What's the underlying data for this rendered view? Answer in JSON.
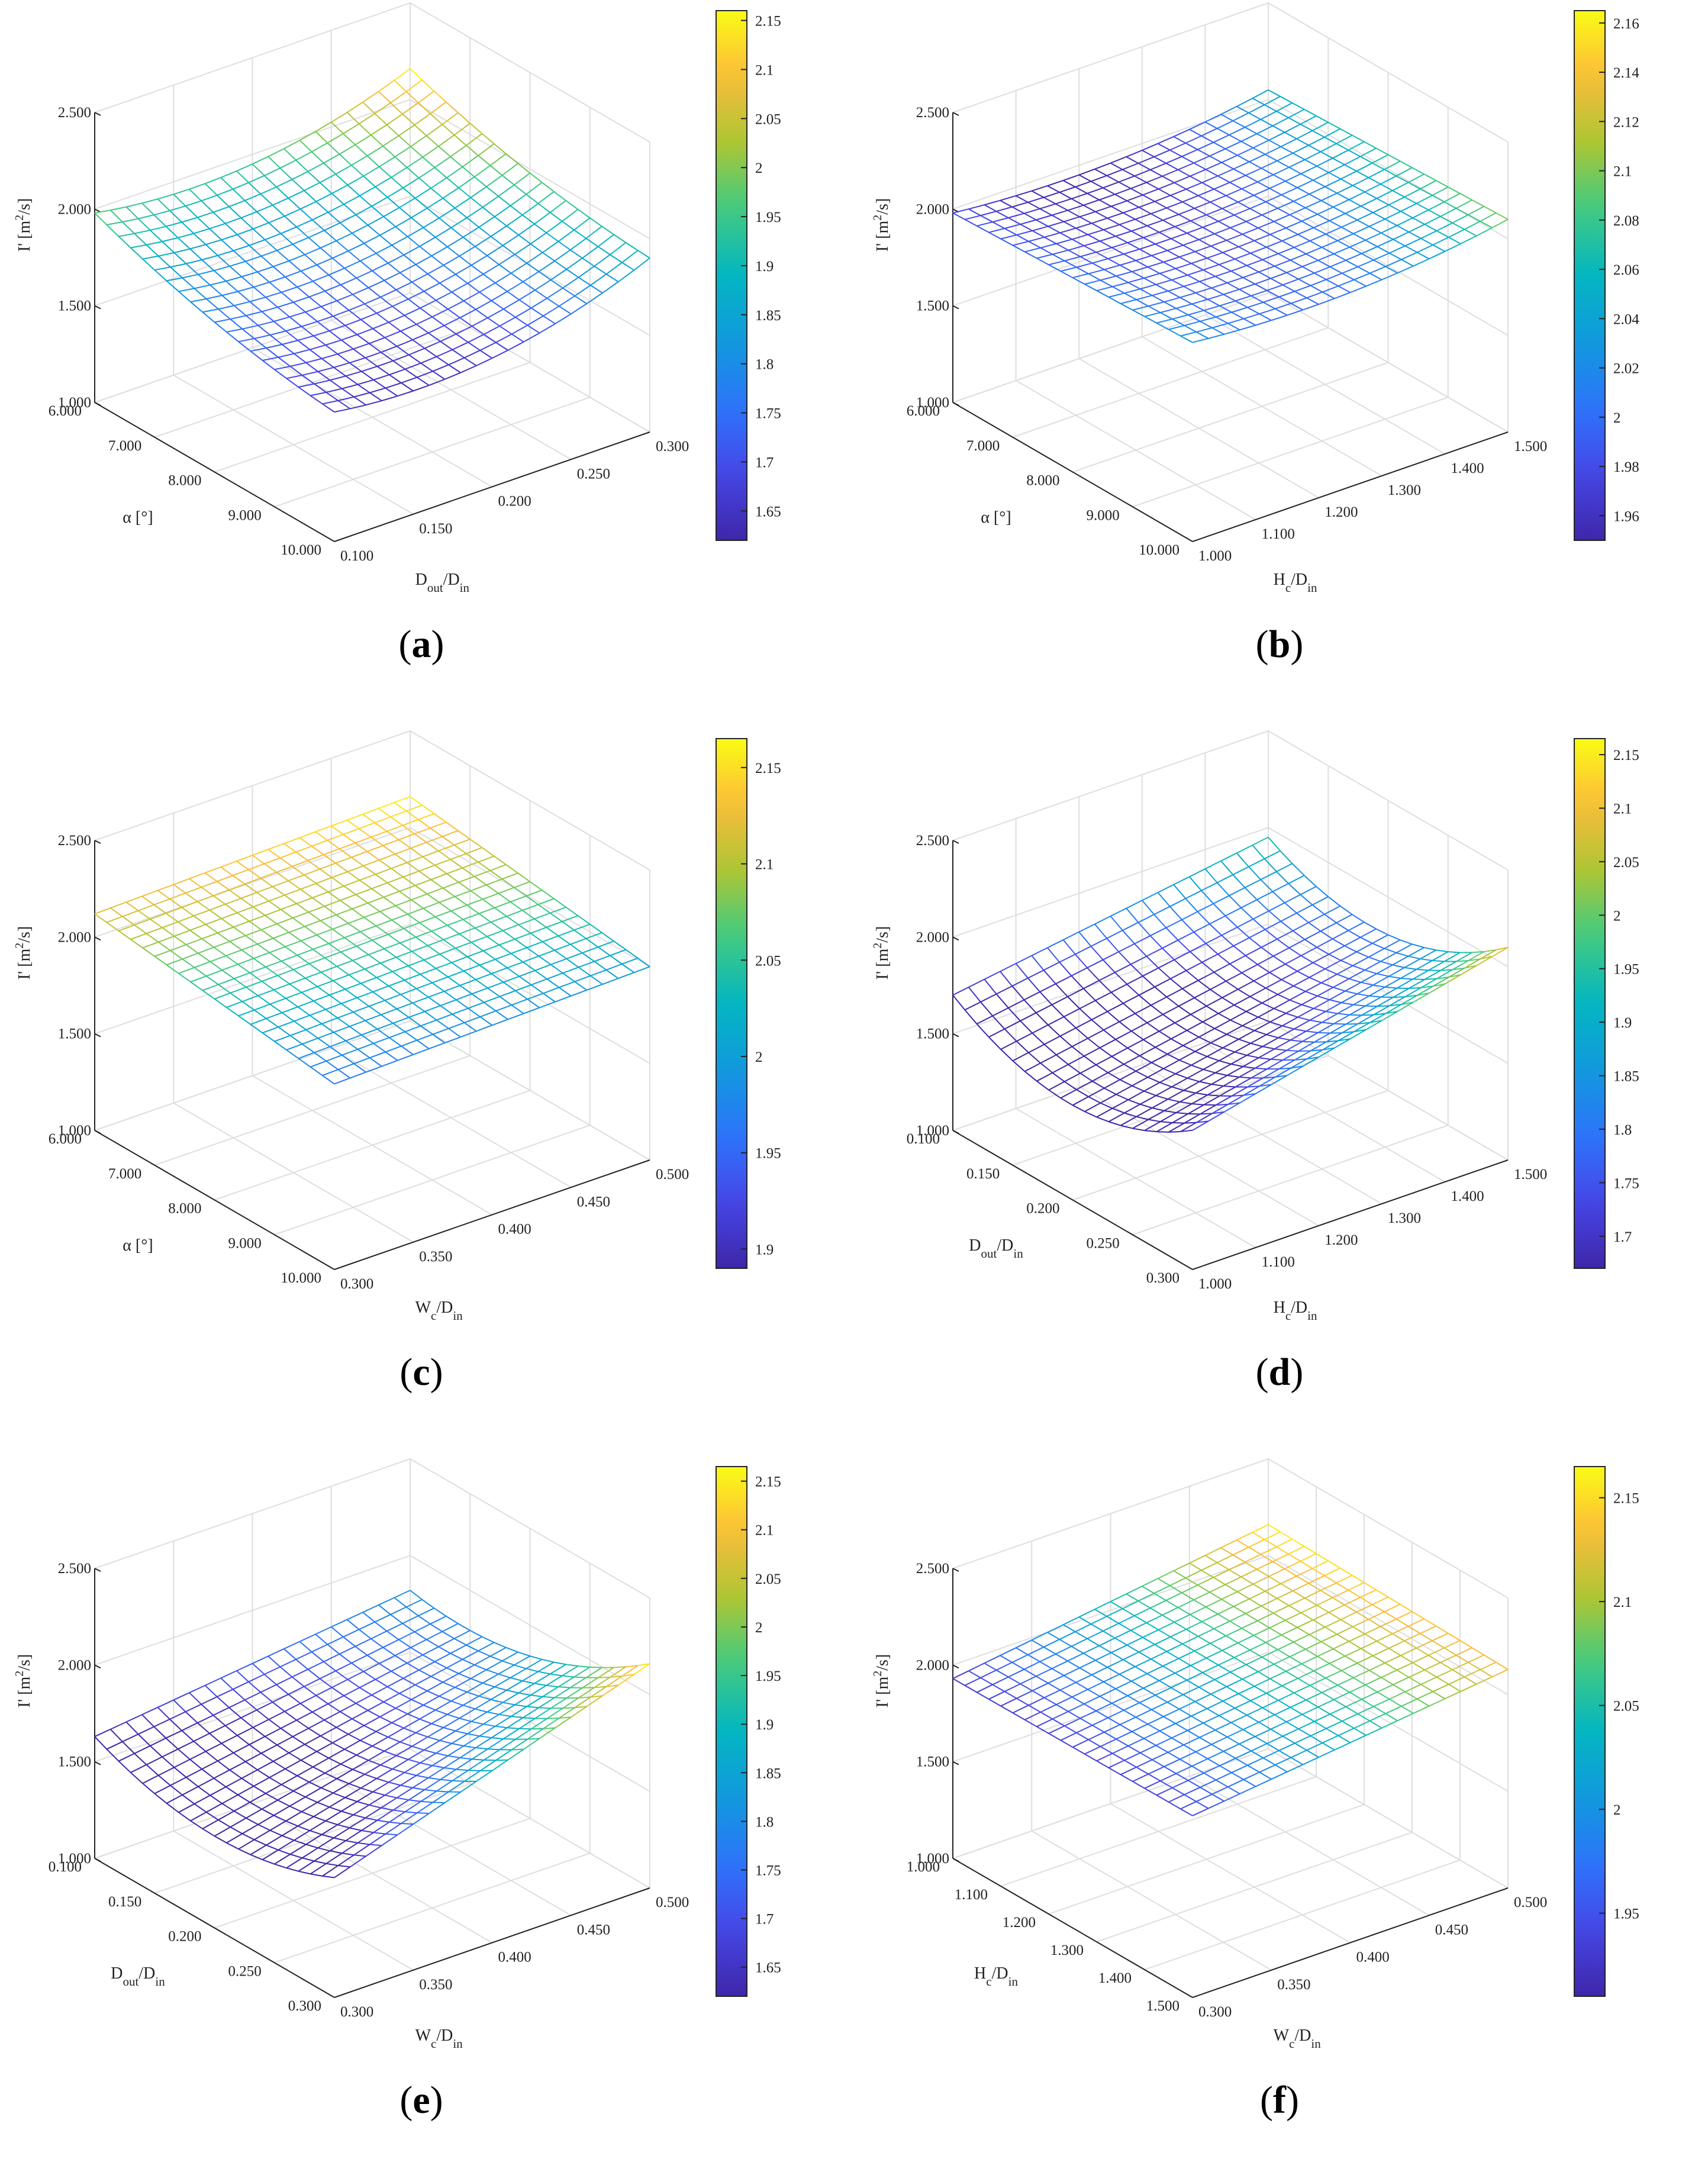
{
  "chart_data": [
    {
      "panel": "a",
      "type": "surface",
      "caption": "(a)",
      "zlabel": {
        "main": "I'",
        "unit": "[m",
        "sup": "2",
        "unit_end": "/s]"
      },
      "xlabel": {
        "main": "α [°]",
        "sub": ""
      },
      "ylabel": {
        "main": "D",
        "sub": "out",
        "mid": "/D",
        "sub2": "in"
      },
      "x_ticks": [
        "6.000",
        "7.000",
        "8.000",
        "9.000",
        "10.000"
      ],
      "y_ticks": [
        "0.100",
        "0.150",
        "0.200",
        "0.250",
        "0.300"
      ],
      "z_ticks": [
        "1.000",
        "1.500",
        "2.000",
        "2.500"
      ],
      "zlim": [
        1.0,
        2.5
      ],
      "colorbar_ticks": [
        "1.65",
        "1.7",
        "1.75",
        "1.8",
        "1.85",
        "1.9",
        "1.95",
        "2",
        "2.05",
        "2.1",
        "2.15"
      ],
      "clim": [
        1.62,
        2.16
      ],
      "corners": {
        "x0y0": 1.98,
        "x1y0": 1.67,
        "x0y1": 2.16,
        "x1y1": 1.9
      },
      "curv_x": -0.05,
      "curv_y": -0.12
    },
    {
      "panel": "b",
      "type": "surface",
      "caption": "(b)",
      "zlabel": {
        "main": "I'",
        "unit": "[m",
        "sup": "2",
        "unit_end": "/s]"
      },
      "xlabel": {
        "main": "α [°]",
        "sub": ""
      },
      "ylabel": {
        "main": "H",
        "sub": "c",
        "mid": "/D",
        "sub2": "in"
      },
      "x_ticks": [
        "6.000",
        "7.000",
        "8.000",
        "9.000",
        "10.000"
      ],
      "y_ticks": [
        "1.000",
        "1.100",
        "1.200",
        "1.300",
        "1.400",
        "1.500"
      ],
      "z_ticks": [
        "1.000",
        "1.500",
        "2.000",
        "2.500"
      ],
      "zlim": [
        1.0,
        2.5
      ],
      "colorbar_ticks": [
        "1.96",
        "1.98",
        "2",
        "2.02",
        "2.04",
        "2.06",
        "2.08",
        "2.1",
        "2.12",
        "2.14",
        "2.16"
      ],
      "clim": [
        1.95,
        2.165
      ],
      "corners": {
        "x0y0": 1.98,
        "x1y0": 2.03,
        "x0y1": 2.05,
        "x1y1": 2.1
      },
      "curv_x": 0.0,
      "curv_y": -0.06
    },
    {
      "panel": "c",
      "type": "surface",
      "caption": "(c)",
      "zlabel": {
        "main": "I'",
        "unit": "[m",
        "sup": "2",
        "unit_end": "/s]"
      },
      "xlabel": {
        "main": "α [°]",
        "sub": ""
      },
      "ylabel": {
        "main": "W",
        "sub": "c",
        "mid": "/D",
        "sub2": "in"
      },
      "x_ticks": [
        "6.000",
        "7.000",
        "8.000",
        "9.000",
        "10.000"
      ],
      "y_ticks": [
        "0.300",
        "0.350",
        "0.400",
        "0.450",
        "0.500"
      ],
      "z_ticks": [
        "1.000",
        "1.500",
        "2.000",
        "2.500"
      ],
      "zlim": [
        1.0,
        2.5
      ],
      "colorbar_ticks": [
        "1.9",
        "1.95",
        "2",
        "2.05",
        "2.1",
        "2.15"
      ],
      "clim": [
        1.89,
        2.165
      ],
      "corners": {
        "x0y0": 2.12,
        "x1y0": 1.96,
        "x0y1": 2.16,
        "x1y1": 2.0
      },
      "curv_x": 0.0,
      "curv_y": 0.0
    },
    {
      "panel": "d",
      "type": "surface",
      "caption": "(d)",
      "zlabel": {
        "main": "I'",
        "unit": "[m",
        "sup": "2",
        "unit_end": "/s]"
      },
      "xlabel": {
        "main": "D",
        "sub": "out",
        "mid": "/D",
        "sub2": "in"
      },
      "ylabel": {
        "main": "H",
        "sub": "c",
        "mid": "/D",
        "sub2": "in"
      },
      "x_ticks": [
        "0.100",
        "0.150",
        "0.200",
        "0.250",
        "0.300"
      ],
      "y_ticks": [
        "1.000",
        "1.100",
        "1.200",
        "1.300",
        "1.400",
        "1.500"
      ],
      "z_ticks": [
        "1.000",
        "1.500",
        "2.000",
        "2.500"
      ],
      "zlim": [
        1.0,
        2.5
      ],
      "colorbar_ticks": [
        "1.7",
        "1.75",
        "1.8",
        "1.85",
        "1.9",
        "1.95",
        "2",
        "2.05",
        "2.1",
        "2.15"
      ],
      "clim": [
        1.67,
        2.165
      ],
      "corners": {
        "x0y0": 1.7,
        "x1y0": 1.72,
        "x0y1": 1.95,
        "x1y1": 2.1
      },
      "curv_x": -0.22,
      "curv_y": 0.0
    },
    {
      "panel": "e",
      "type": "surface",
      "caption": "(e)",
      "zlabel": {
        "main": "I'",
        "unit": "[m",
        "sup": "2",
        "unit_end": "/s]"
      },
      "xlabel": {
        "main": "D",
        "sub": "out",
        "mid": "/D",
        "sub2": "in"
      },
      "ylabel": {
        "main": "W",
        "sub": "c",
        "mid": "/D",
        "sub2": "in"
      },
      "x_ticks": [
        "0.100",
        "0.150",
        "0.200",
        "0.250",
        "0.300"
      ],
      "y_ticks": [
        "0.300",
        "0.350",
        "0.400",
        "0.450",
        "0.500"
      ],
      "z_ticks": [
        "1.000",
        "1.500",
        "2.000",
        "2.500"
      ],
      "zlim": [
        1.0,
        2.5
      ],
      "colorbar_ticks": [
        "1.65",
        "1.7",
        "1.75",
        "1.8",
        "1.85",
        "1.9",
        "1.95",
        "2",
        "2.05",
        "2.1",
        "2.15"
      ],
      "clim": [
        1.62,
        2.165
      ],
      "corners": {
        "x0y0": 1.63,
        "x1y0": 1.62,
        "x0y1": 1.82,
        "x1y1": 2.16
      },
      "curv_x": -0.15,
      "curv_y": 0.0
    },
    {
      "panel": "f",
      "type": "surface",
      "caption": "(f)",
      "zlabel": {
        "main": "I'",
        "unit": "[m",
        "sup": "2",
        "unit_end": "/s]"
      },
      "xlabel": {
        "main": "H",
        "sub": "c",
        "mid": "/D",
        "sub2": "in"
      },
      "ylabel": {
        "main": "W",
        "sub": "c",
        "mid": "/D",
        "sub2": "in"
      },
      "x_ticks": [
        "1.000",
        "1.100",
        "1.200",
        "1.300",
        "1.400",
        "1.500"
      ],
      "y_ticks": [
        "0.300",
        "0.350",
        "0.400",
        "0.450",
        "0.500"
      ],
      "z_ticks": [
        "1.000",
        "1.500",
        "2.000",
        "2.500"
      ],
      "zlim": [
        1.0,
        2.5
      ],
      "colorbar_ticks": [
        "1.95",
        "2",
        "2.05",
        "2.1",
        "2.15"
      ],
      "clim": [
        1.91,
        2.165
      ],
      "corners": {
        "x0y0": 1.93,
        "x1y0": 1.94,
        "x0y1": 2.16,
        "x1y1": 2.13
      },
      "curv_x": 0.0,
      "curv_y": 0.0
    }
  ]
}
